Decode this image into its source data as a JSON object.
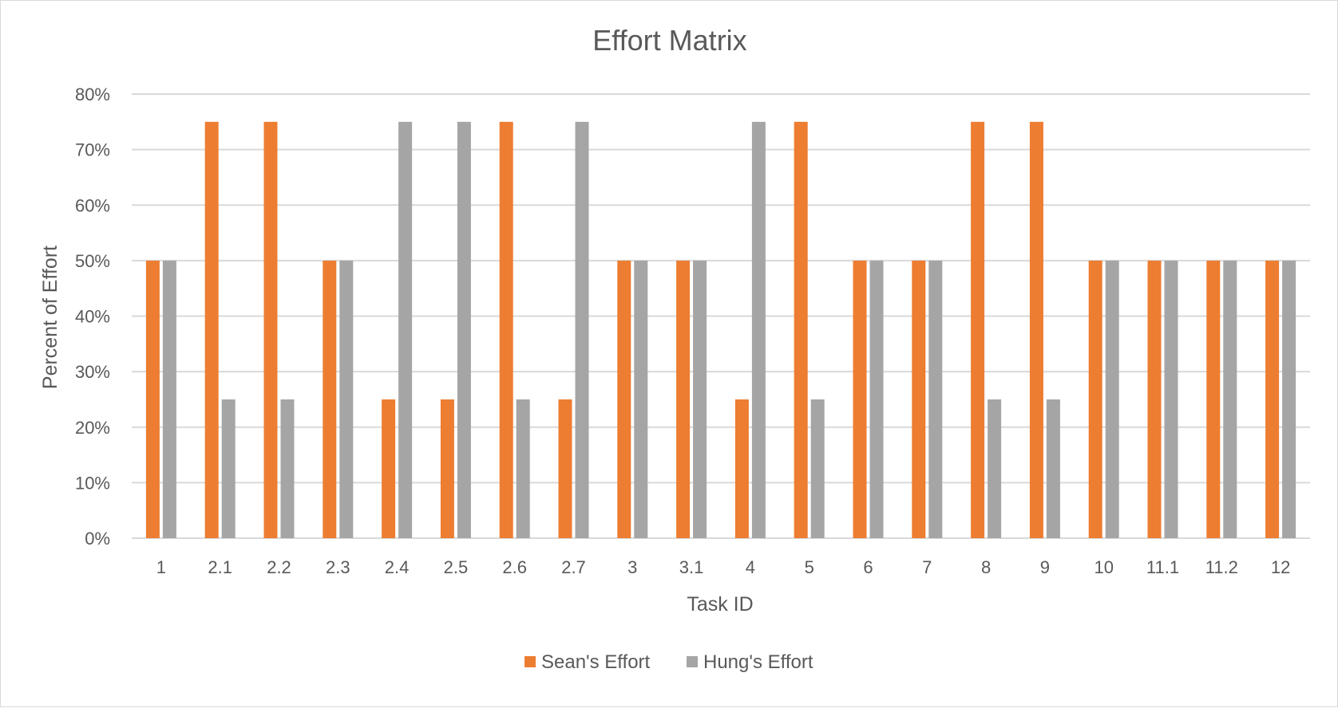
{
  "chart_data": {
    "type": "bar",
    "title": "Effort Matrix",
    "xlabel": "Task ID",
    "ylabel": "Percent of Effort",
    "ylim": [
      0,
      0.8
    ],
    "y_ticks": [
      "0%",
      "10%",
      "20%",
      "30%",
      "40%",
      "50%",
      "60%",
      "70%",
      "80%"
    ],
    "grid": true,
    "legend_position": "bottom",
    "categories": [
      "1",
      "2.1",
      "2.2",
      "2.3",
      "2.4",
      "2.5",
      "2.6",
      "2.7",
      "3",
      "3.1",
      "4",
      "5",
      "6",
      "7",
      "8",
      "9",
      "10",
      "11.1",
      "11.2",
      "12"
    ],
    "series": [
      {
        "name": "Sean's Effort",
        "color": "#ed7d31",
        "values": [
          0.5,
          0.75,
          0.75,
          0.5,
          0.25,
          0.25,
          0.75,
          0.25,
          0.5,
          0.5,
          0.25,
          0.75,
          0.5,
          0.5,
          0.75,
          0.75,
          0.5,
          0.5,
          0.5,
          0.5
        ]
      },
      {
        "name": "Hung's Effort",
        "color": "#a5a5a5",
        "values": [
          0.5,
          0.25,
          0.25,
          0.5,
          0.75,
          0.75,
          0.25,
          0.75,
          0.5,
          0.5,
          0.75,
          0.25,
          0.5,
          0.5,
          0.25,
          0.25,
          0.5,
          0.5,
          0.5,
          0.5
        ]
      }
    ],
    "colors": {
      "gridline": "#d9d9d9",
      "text": "#595959"
    }
  }
}
